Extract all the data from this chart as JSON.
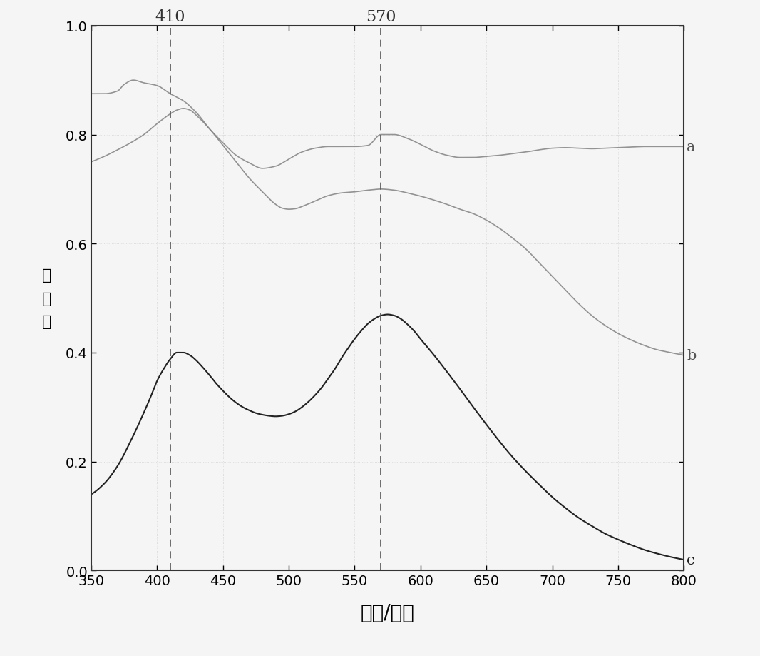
{
  "x_min": 350,
  "x_max": 800,
  "y_min": 0.0,
  "y_max": 1.0,
  "x_ticks": [
    350,
    400,
    450,
    500,
    550,
    600,
    650,
    700,
    750,
    800
  ],
  "y_ticks": [
    0.0,
    0.2,
    0.4,
    0.6,
    0.8,
    1.0
  ],
  "vline1_x": 410,
  "vline2_x": 570,
  "vline1_label": "410",
  "vline2_label": "570",
  "xlabel": "波长/纳米",
  "ylabel": "吸\n光\n度",
  "line_a_label": "a",
  "line_b_label": "b",
  "line_c_label": "c",
  "line_color_a": "#888888",
  "line_color_b": "#888888",
  "line_color_c": "#222222",
  "background_color": "#f5f5f5",
  "grid_color": "#cccccc",
  "curve_a_points": [
    [
      350,
      0.875
    ],
    [
      360,
      0.875
    ],
    [
      370,
      0.88
    ],
    [
      375,
      0.892
    ],
    [
      382,
      0.9
    ],
    [
      390,
      0.895
    ],
    [
      400,
      0.89
    ],
    [
      410,
      0.875
    ],
    [
      420,
      0.862
    ],
    [
      430,
      0.84
    ],
    [
      440,
      0.81
    ],
    [
      450,
      0.785
    ],
    [
      460,
      0.762
    ],
    [
      470,
      0.748
    ],
    [
      480,
      0.738
    ],
    [
      490,
      0.742
    ],
    [
      500,
      0.755
    ],
    [
      510,
      0.768
    ],
    [
      520,
      0.775
    ],
    [
      530,
      0.778
    ],
    [
      540,
      0.778
    ],
    [
      550,
      0.778
    ],
    [
      560,
      0.78
    ],
    [
      570,
      0.8
    ],
    [
      580,
      0.8
    ],
    [
      590,
      0.793
    ],
    [
      600,
      0.782
    ],
    [
      610,
      0.77
    ],
    [
      620,
      0.762
    ],
    [
      630,
      0.758
    ],
    [
      640,
      0.758
    ],
    [
      650,
      0.76
    ],
    [
      660,
      0.762
    ],
    [
      670,
      0.765
    ],
    [
      680,
      0.768
    ],
    [
      690,
      0.772
    ],
    [
      700,
      0.775
    ],
    [
      710,
      0.776
    ],
    [
      720,
      0.775
    ],
    [
      730,
      0.774
    ],
    [
      740,
      0.775
    ],
    [
      750,
      0.776
    ],
    [
      760,
      0.777
    ],
    [
      770,
      0.778
    ],
    [
      780,
      0.778
    ],
    [
      790,
      0.778
    ],
    [
      800,
      0.778
    ]
  ],
  "curve_b_points": [
    [
      350,
      0.75
    ],
    [
      360,
      0.76
    ],
    [
      370,
      0.772
    ],
    [
      380,
      0.785
    ],
    [
      390,
      0.8
    ],
    [
      400,
      0.82
    ],
    [
      410,
      0.838
    ],
    [
      415,
      0.845
    ],
    [
      420,
      0.848
    ],
    [
      425,
      0.845
    ],
    [
      430,
      0.835
    ],
    [
      440,
      0.81
    ],
    [
      450,
      0.78
    ],
    [
      460,
      0.75
    ],
    [
      470,
      0.72
    ],
    [
      480,
      0.695
    ],
    [
      490,
      0.672
    ],
    [
      495,
      0.665
    ],
    [
      500,
      0.663
    ],
    [
      505,
      0.664
    ],
    [
      510,
      0.668
    ],
    [
      520,
      0.678
    ],
    [
      530,
      0.688
    ],
    [
      540,
      0.693
    ],
    [
      550,
      0.695
    ],
    [
      560,
      0.698
    ],
    [
      570,
      0.7
    ],
    [
      580,
      0.698
    ],
    [
      590,
      0.693
    ],
    [
      600,
      0.687
    ],
    [
      610,
      0.68
    ],
    [
      620,
      0.672
    ],
    [
      630,
      0.663
    ],
    [
      640,
      0.655
    ],
    [
      650,
      0.643
    ],
    [
      660,
      0.628
    ],
    [
      670,
      0.61
    ],
    [
      680,
      0.59
    ],
    [
      690,
      0.565
    ],
    [
      700,
      0.54
    ],
    [
      710,
      0.515
    ],
    [
      720,
      0.49
    ],
    [
      730,
      0.468
    ],
    [
      740,
      0.45
    ],
    [
      750,
      0.435
    ],
    [
      760,
      0.423
    ],
    [
      770,
      0.413
    ],
    [
      780,
      0.405
    ],
    [
      790,
      0.4
    ],
    [
      800,
      0.395
    ]
  ],
  "curve_c_points": [
    [
      350,
      0.14
    ],
    [
      360,
      0.16
    ],
    [
      370,
      0.192
    ],
    [
      380,
      0.238
    ],
    [
      390,
      0.29
    ],
    [
      395,
      0.318
    ],
    [
      400,
      0.348
    ],
    [
      405,
      0.37
    ],
    [
      410,
      0.388
    ],
    [
      415,
      0.4
    ],
    [
      420,
      0.4
    ],
    [
      425,
      0.395
    ],
    [
      430,
      0.385
    ],
    [
      435,
      0.372
    ],
    [
      440,
      0.358
    ],
    [
      445,
      0.343
    ],
    [
      450,
      0.33
    ],
    [
      455,
      0.318
    ],
    [
      460,
      0.308
    ],
    [
      465,
      0.3
    ],
    [
      470,
      0.294
    ],
    [
      475,
      0.289
    ],
    [
      480,
      0.286
    ],
    [
      485,
      0.284
    ],
    [
      490,
      0.283
    ],
    [
      495,
      0.284
    ],
    [
      500,
      0.287
    ],
    [
      505,
      0.292
    ],
    [
      510,
      0.3
    ],
    [
      515,
      0.31
    ],
    [
      520,
      0.322
    ],
    [
      525,
      0.336
    ],
    [
      530,
      0.353
    ],
    [
      535,
      0.37
    ],
    [
      540,
      0.39
    ],
    [
      545,
      0.408
    ],
    [
      550,
      0.425
    ],
    [
      555,
      0.44
    ],
    [
      560,
      0.453
    ],
    [
      565,
      0.462
    ],
    [
      570,
      0.468
    ],
    [
      575,
      0.47
    ],
    [
      580,
      0.468
    ],
    [
      585,
      0.462
    ],
    [
      590,
      0.452
    ],
    [
      595,
      0.44
    ],
    [
      600,
      0.425
    ],
    [
      610,
      0.396
    ],
    [
      620,
      0.365
    ],
    [
      630,
      0.333
    ],
    [
      640,
      0.3
    ],
    [
      650,
      0.268
    ],
    [
      660,
      0.237
    ],
    [
      670,
      0.208
    ],
    [
      680,
      0.182
    ],
    [
      690,
      0.158
    ],
    [
      700,
      0.135
    ],
    [
      710,
      0.115
    ],
    [
      720,
      0.097
    ],
    [
      730,
      0.082
    ],
    [
      740,
      0.068
    ],
    [
      750,
      0.057
    ],
    [
      760,
      0.047
    ],
    [
      770,
      0.038
    ],
    [
      780,
      0.031
    ],
    [
      790,
      0.025
    ],
    [
      800,
      0.02
    ]
  ]
}
